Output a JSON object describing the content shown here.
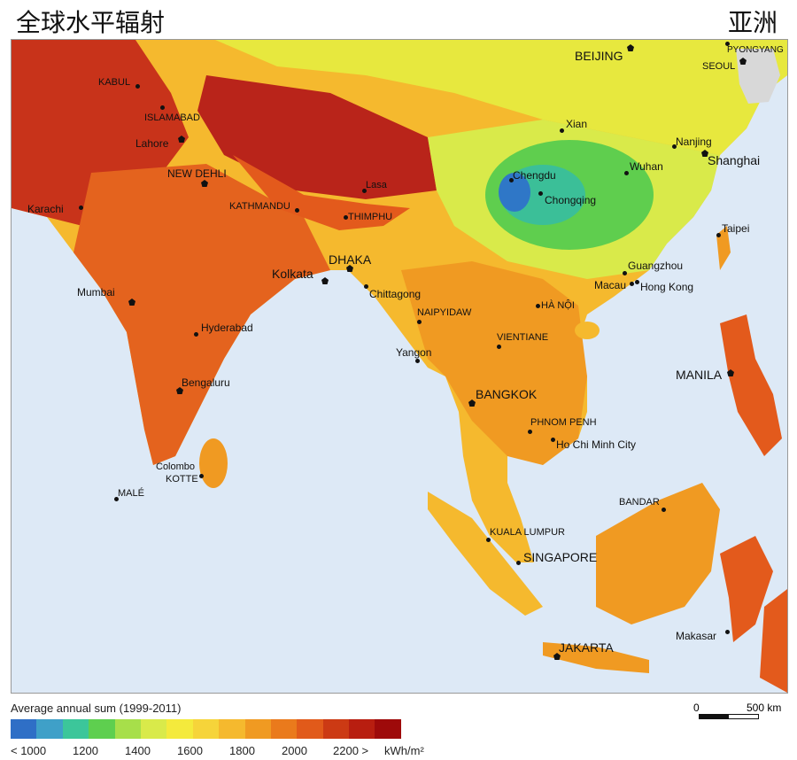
{
  "titles": {
    "left": "全球水平辐射",
    "right": "亚洲"
  },
  "colors": {
    "sea": "#dde9f6",
    "very_high": "#a80d0d",
    "high": "#e0501d",
    "mid_high": "#f08a1e",
    "mid": "#f7b733",
    "yellow": "#f2e23a",
    "light_green": "#d6e84a",
    "green": "#5fce4e",
    "teal": "#3bbf98",
    "blue": "#2f77c7",
    "korea_grey": "#d8d8d8"
  },
  "cities": [
    {
      "id": "kabul",
      "label": "KABUL",
      "size": "small",
      "marker": "dot"
    },
    {
      "id": "islamabad",
      "label": "ISLAMABAD",
      "size": "small",
      "marker": "dot"
    },
    {
      "id": "lahore",
      "label": "Lahore",
      "size": "normal",
      "marker": "pent"
    },
    {
      "id": "new-dehli",
      "label": "NEW DEHLI",
      "size": "normal",
      "marker": "pent"
    },
    {
      "id": "karachi",
      "label": "Karachi",
      "size": "normal",
      "marker": "dot"
    },
    {
      "id": "mumbai",
      "label": "Mumbai",
      "size": "normal",
      "marker": "pent"
    },
    {
      "id": "hyderabad",
      "label": "Hyderabad",
      "size": "normal",
      "marker": "dot"
    },
    {
      "id": "bengaluru",
      "label": "Bengaluru",
      "size": "normal",
      "marker": "pent"
    },
    {
      "id": "colombo",
      "label": "Colombo",
      "size": "small",
      "marker": "none"
    },
    {
      "id": "kotte",
      "label": "KOTTE",
      "size": "small",
      "marker": "dot"
    },
    {
      "id": "male",
      "label": "MALÉ",
      "size": "small",
      "marker": "dot"
    },
    {
      "id": "kathmandu",
      "label": "KATHMANDU",
      "size": "small",
      "marker": "dot"
    },
    {
      "id": "lasa",
      "label": "Lasa",
      "size": "small",
      "marker": "dot"
    },
    {
      "id": "thimphu",
      "label": "THIMPHU",
      "size": "small",
      "marker": "dot"
    },
    {
      "id": "kolkata",
      "label": "Kolkata",
      "size": "normal",
      "marker": "pent"
    },
    {
      "id": "dhaka",
      "label": "DHAKA",
      "size": "normal",
      "marker": "pent"
    },
    {
      "id": "chittagong",
      "label": "Chittagong",
      "size": "normal",
      "marker": "dot"
    },
    {
      "id": "naipyidaw",
      "label": "NAIPYIDAW",
      "size": "small",
      "marker": "dot"
    },
    {
      "id": "yangon",
      "label": "Yangon",
      "size": "normal",
      "marker": "dot"
    },
    {
      "id": "bangkok",
      "label": "BANGKOK",
      "size": "big",
      "marker": "pent"
    },
    {
      "id": "vientiane",
      "label": "VIENTIANE",
      "size": "small",
      "marker": "dot"
    },
    {
      "id": "ha-noi",
      "label": "HÀ NỘI",
      "size": "small",
      "marker": "dot"
    },
    {
      "id": "phnom-penh",
      "label": "PHNOM PENH",
      "size": "small",
      "marker": "dot"
    },
    {
      "id": "ho-chi-minh",
      "label": "Ho Chi Minh City",
      "size": "normal",
      "marker": "dot"
    },
    {
      "id": "kuala-lumpur",
      "label": "KUALA LUMPUR",
      "size": "small",
      "marker": "dot"
    },
    {
      "id": "singapore",
      "label": "SINGAPORE",
      "size": "big",
      "marker": "dot"
    },
    {
      "id": "jakarta",
      "label": "JAKARTA",
      "size": "big",
      "marker": "pent"
    },
    {
      "id": "bandar",
      "label": "BANDAR",
      "size": "small",
      "marker": "dot"
    },
    {
      "id": "makasar",
      "label": "Makasar",
      "size": "normal",
      "marker": "dot"
    },
    {
      "id": "manila",
      "label": "MANILA",
      "size": "big",
      "marker": "pent"
    },
    {
      "id": "taipei",
      "label": "Taipei",
      "size": "normal",
      "marker": "dot"
    },
    {
      "id": "hong-kong",
      "label": "Hong Kong",
      "size": "normal",
      "marker": "dot"
    },
    {
      "id": "macau",
      "label": "Macau",
      "size": "normal",
      "marker": "dot"
    },
    {
      "id": "guangzhou",
      "label": "Guangzhou",
      "size": "normal",
      "marker": "dot"
    },
    {
      "id": "chengdu",
      "label": "Chengdu",
      "size": "normal",
      "marker": "dot"
    },
    {
      "id": "chongqing",
      "label": "Chongqing",
      "size": "normal",
      "marker": "dot"
    },
    {
      "id": "xian",
      "label": "Xian",
      "size": "normal",
      "marker": "dot"
    },
    {
      "id": "wuhan",
      "label": "Wuhan",
      "size": "normal",
      "marker": "dot"
    },
    {
      "id": "nanjing",
      "label": "Nanjing",
      "size": "normal",
      "marker": "dot"
    },
    {
      "id": "shanghai",
      "label": "Shanghai",
      "size": "big",
      "marker": "pent"
    },
    {
      "id": "beijing",
      "label": "BEIJING",
      "size": "big",
      "marker": "pent"
    },
    {
      "id": "seoul",
      "label": "SEOUL",
      "size": "small",
      "marker": "pent"
    },
    {
      "id": "pyongyang",
      "label": "PYONGYANG",
      "size": "small",
      "marker": "dot"
    }
  ],
  "legend": {
    "title": "Average annual sum (1999-2011)",
    "swatches": [
      "#2f6fc6",
      "#3fa0c8",
      "#3cc69a",
      "#5ecf4f",
      "#a7df4a",
      "#d9ea4a",
      "#f4ea3c",
      "#f6d43a",
      "#f5b92e",
      "#f09a22",
      "#ea7a1c",
      "#e15a1a",
      "#cc3a14",
      "#b81e10",
      "#9e0a0a"
    ],
    "ticks": [
      "< 1000",
      "1200",
      "1400",
      "1600",
      "1800",
      "2000",
      "2200 >"
    ],
    "unit": "kWh/m²"
  },
  "scale": {
    "zero": "0",
    "max": "500 km"
  }
}
